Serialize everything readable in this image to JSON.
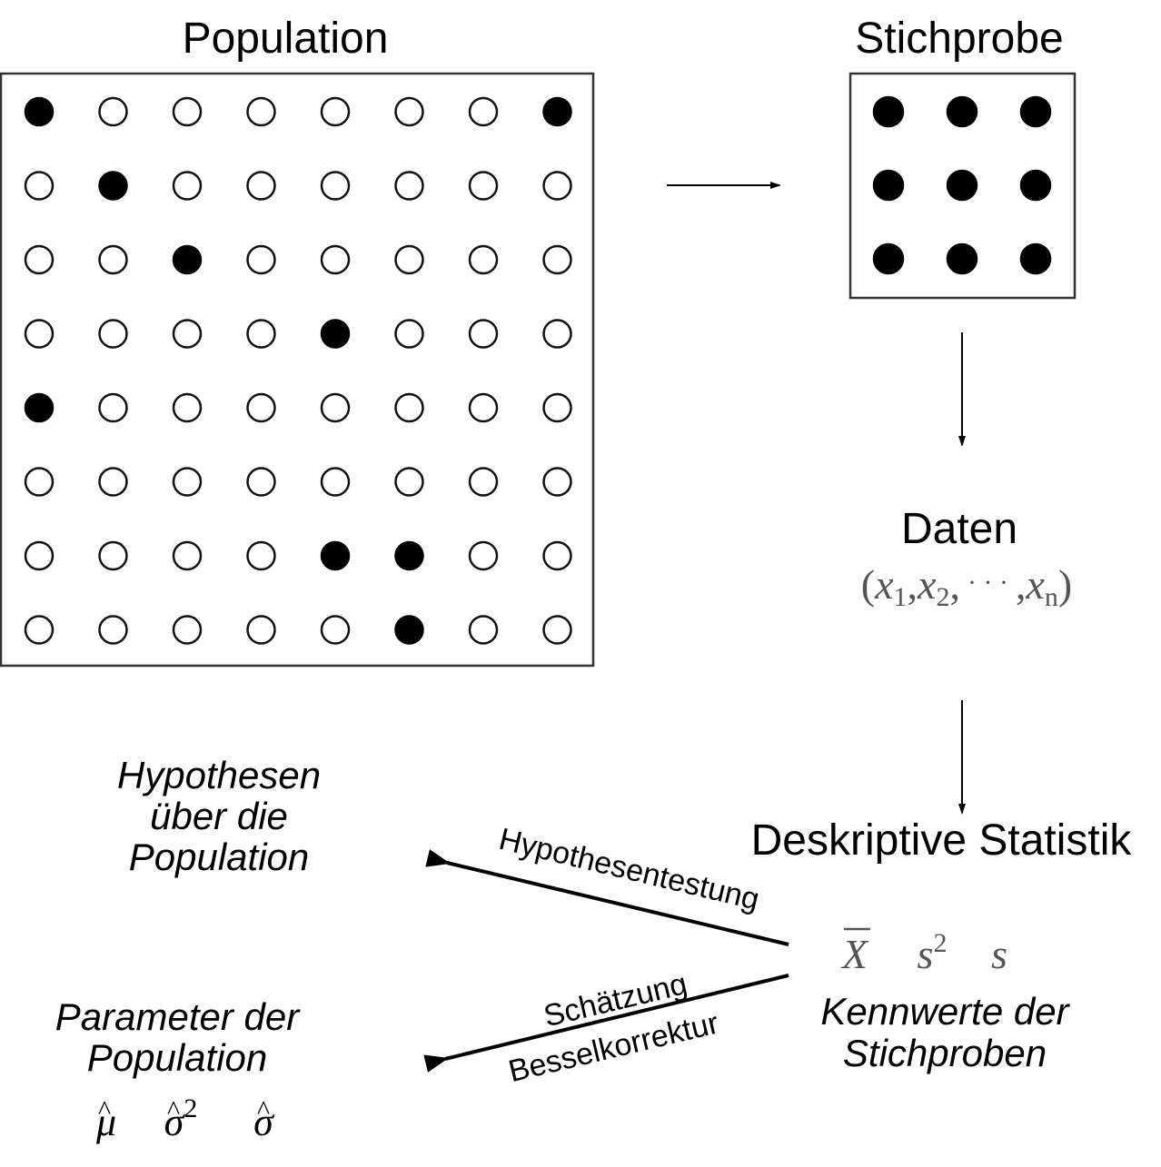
{
  "population": {
    "title": "Population",
    "grid": [
      [
        1,
        0,
        0,
        0,
        0,
        0,
        0,
        1
      ],
      [
        0,
        1,
        0,
        0,
        0,
        0,
        0,
        0
      ],
      [
        0,
        0,
        1,
        0,
        0,
        0,
        0,
        0
      ],
      [
        0,
        0,
        0,
        0,
        1,
        0,
        0,
        0
      ],
      [
        1,
        0,
        0,
        0,
        0,
        0,
        0,
        0
      ],
      [
        0,
        0,
        0,
        0,
        0,
        0,
        0,
        0
      ],
      [
        0,
        0,
        0,
        0,
        1,
        1,
        0,
        0
      ],
      [
        0,
        0,
        0,
        0,
        0,
        1,
        0,
        0
      ]
    ]
  },
  "sample": {
    "title": "Stichprobe",
    "grid": [
      [
        1,
        1,
        1
      ],
      [
        1,
        1,
        1
      ],
      [
        1,
        1,
        1
      ]
    ]
  },
  "data": {
    "title": "Daten",
    "formula": {
      "open": "(",
      "x1": "x",
      "x1_sub": "1",
      "sep1": ",",
      "x2": "x",
      "x2_sub": "2",
      "sep2": ",",
      "dots": "· · ·",
      "sep3": ",",
      "xn": "x",
      "xn_sub": "n",
      "close": ")"
    }
  },
  "descriptive": {
    "title": "Deskriptive Statistik",
    "symbols": {
      "xbar": "X",
      "xbar_accent": "¯",
      "s2": "s",
      "s2_sup": "2",
      "s": "s"
    },
    "label_line1": "Kennwerte der",
    "label_line2": "Stichproben"
  },
  "hypotheses": {
    "line1": "Hypothesen",
    "line2": "über die",
    "line3": "Population"
  },
  "parameters": {
    "line1": "Parameter der",
    "line2": "Population",
    "symbols": {
      "mu": "μ",
      "mu_hat": "^",
      "sigma2": "σ",
      "sigma2_hat": "^",
      "sigma2_sup": "2",
      "sigma": "σ",
      "sigma_hat": "^"
    }
  },
  "arrows": {
    "hypothesis_test_label": "Hypothesentestung",
    "estimation_label_line1": "Schätzung",
    "estimation_label_line2": "Besselkorrektur"
  }
}
